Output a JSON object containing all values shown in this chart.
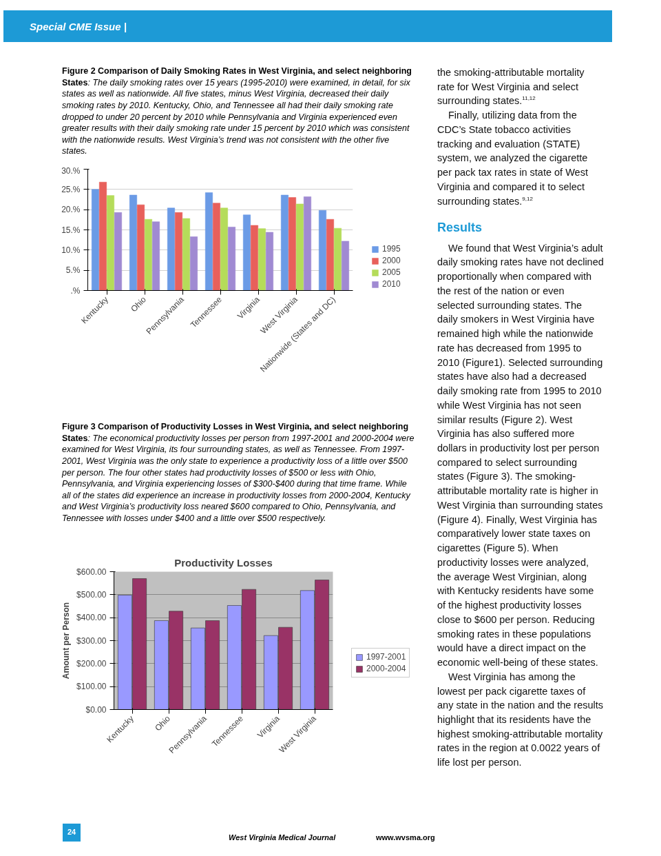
{
  "chart_data": [
    {
      "type": "other",
      "annotations": [
        "Special CME Issue |"
      ]
    },
    {
      "type": "bar",
      "title": "Figure 2 Comparison of Daily Smoking Rates in West Virginia, and select neighboring States",
      "subtitle": ": The daily smoking rates over 15 years (1995-2010) were examined, in detail, for six states as well as nationwide. All five states, minus West Virginia, decreased their daily smoking rates by 2010. Kentucky, Ohio, and Tennessee all had their daily smoking rate dropped to under 20 percent by 2010 while Pennsylvania and Virginia experienced even greater results with their daily smoking rate under 15 percent by 2010 which was consistent with the nationwide results. West Virginia’s trend was not consistent with the other five states.",
      "categories": [
        "Kentucky",
        "Ohio",
        "Pennsylvania",
        "Tennessee",
        "Virginia",
        "West Virginia",
        "Nationwide (States and DC)"
      ],
      "series": [
        {
          "name": "1995",
          "color": "#6b9be6",
          "values": [
            25.0,
            23.6,
            20.4,
            24.2,
            18.7,
            23.6,
            19.8
          ]
        },
        {
          "name": "2000",
          "color": "#e8605b",
          "values": [
            26.8,
            21.2,
            19.3,
            21.6,
            16.1,
            23.0,
            17.6
          ]
        },
        {
          "name": "2005",
          "color": "#b5dc5a",
          "values": [
            23.5,
            17.6,
            17.8,
            20.4,
            15.3,
            21.4,
            15.4
          ]
        },
        {
          "name": "2010",
          "color": "#a08ad2",
          "values": [
            19.3,
            17.0,
            13.3,
            15.7,
            14.4,
            23.2,
            12.2
          ]
        }
      ],
      "ylim": [
        0,
        30
      ],
      "yticks": [
        {
          "value": 0,
          "label": ".%"
        },
        {
          "value": 5,
          "label": "5.%"
        },
        {
          "value": 10,
          "label": "10.%"
        },
        {
          "value": 15,
          "label": "15.%"
        },
        {
          "value": 20,
          "label": "20.%"
        },
        {
          "value": 25,
          "label": "25.%"
        },
        {
          "value": 30,
          "label": "30.%"
        }
      ],
      "grid": "y",
      "legend": "right"
    },
    {
      "type": "bar",
      "title": "Productivity Losses",
      "ylabel": "Amount per Person",
      "annotations": [
        "Figure 3 Comparison of Productivity Losses in West Virginia, and select neighboring States",
        ": The economical productivity losses per person from 1997-2001 and 2000-2004 were examined for West Virginia, its four surrounding states, as well as Tennessee. From 1997-2001, West Virginia was the only state to experience a productivity loss of a little over $500 per person. The four other states had productivity losses of $500 or less with Ohio, Pennsylvania, and Virginia experiencing losses of $300-$400 during that time frame. While all of the states did experience an increase in productivity losses from 2000-2004, Kentucky and West Virginia’s productivity loss neared $600 compared to Ohio, Pennsylvania, and Tennessee with losses under $400 and a little over $500 respectively."
      ],
      "categories": [
        "Kentucky",
        "Ohio",
        "Pennsylvania",
        "Tennessee",
        "Virginia",
        "West Virginia"
      ],
      "series": [
        {
          "name": "1997-2001",
          "color": "#9999ff",
          "values": [
            498,
            387,
            355,
            453,
            322,
            518
          ]
        },
        {
          "name": "2000-2004",
          "color": "#993366",
          "values": [
            570,
            428,
            387,
            523,
            358,
            564
          ]
        }
      ],
      "ylim": [
        0,
        600
      ],
      "yticks": [
        {
          "value": 0,
          "label": "$0.00"
        },
        {
          "value": 100,
          "label": "$100.00"
        },
        {
          "value": 200,
          "label": "$200.00"
        },
        {
          "value": 300,
          "label": "$300.00"
        },
        {
          "value": 400,
          "label": "$400.00"
        },
        {
          "value": 500,
          "label": "$500.00"
        },
        {
          "value": 600,
          "label": "$600.00"
        }
      ],
      "grid": "y",
      "legend": "right"
    },
    {
      "type": "other",
      "annotations": [
        "the smoking-attributable mortality rate for West Virginia and select surrounding states.$^{11,12}$",
        "Finally, utilizing data from the CDC’s State tobacco activities tracking and evaluation (STATE) system, we analyzed the cigarette per pack tax rates in state of West Virginia and compared it to select surrounding states.$^{9,12}$"
      ]
    },
    {
      "type": "other",
      "title": "Results",
      "annotations": [
        "We found that West Virginia’s adult daily smoking rates have not declined proportionally when compared with the rest of the nation or even selected surrounding states. The daily smokers in West Virginia have remained high while the nationwide rate has decreased from 1995 to 2010 (Figure1). Selected surrounding states have also had a decreased daily smoking rate from 1995 to 2010 while West Virginia has not seen similar results (Figure 2). West Virginia has also suffered more dollars in productivity lost per person compared to select surrounding states (Figure 3). The smoking-attributable mortality rate is higher in West Virginia than surrounding states (Figure 4). Finally, West Virginia has comparatively lower state taxes on cigarettes (Figure 5). When productivity losses were analyzed, the average West Virginian, along with Kentucky residents have some of the highest productivity losses close to $600 per person. Reducing smoking rates in these populations would have a direct impact on the economic well-being of these states.",
        "West Virginia has among the lowest per pack cigarette taxes of any state in the nation and the results highlight that its residents have the highest smoking-attributable mortality rates in the region at 0.0022 years of life lost per person."
      ]
    },
    {
      "type": "other",
      "annotations": [
        "24",
        "West Virginia Medical Journal",
        "www.wvsma.org"
      ]
    }
  ]
}
